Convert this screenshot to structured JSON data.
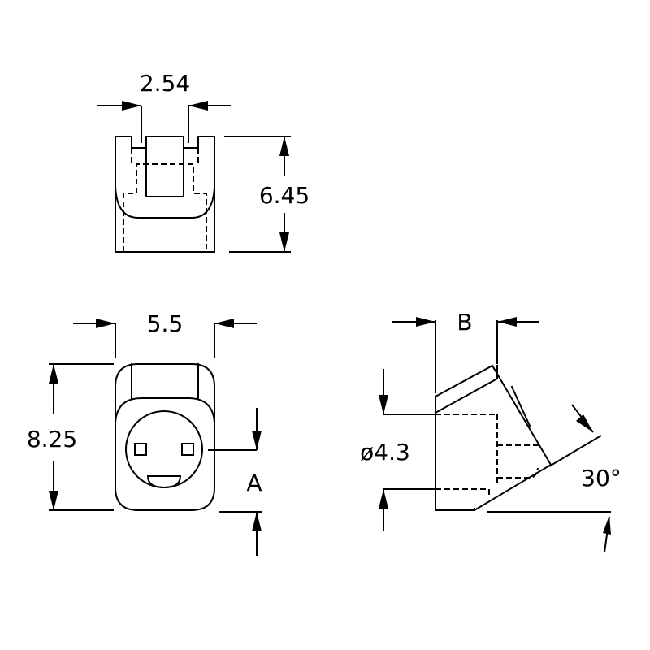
{
  "dimensions": {
    "pitch": "2.54",
    "height": "6.45",
    "width": "5.5",
    "length": "8.25",
    "offset_b": "B",
    "diameter": "ø4.3",
    "angle": "30°",
    "ref_a": "A"
  }
}
